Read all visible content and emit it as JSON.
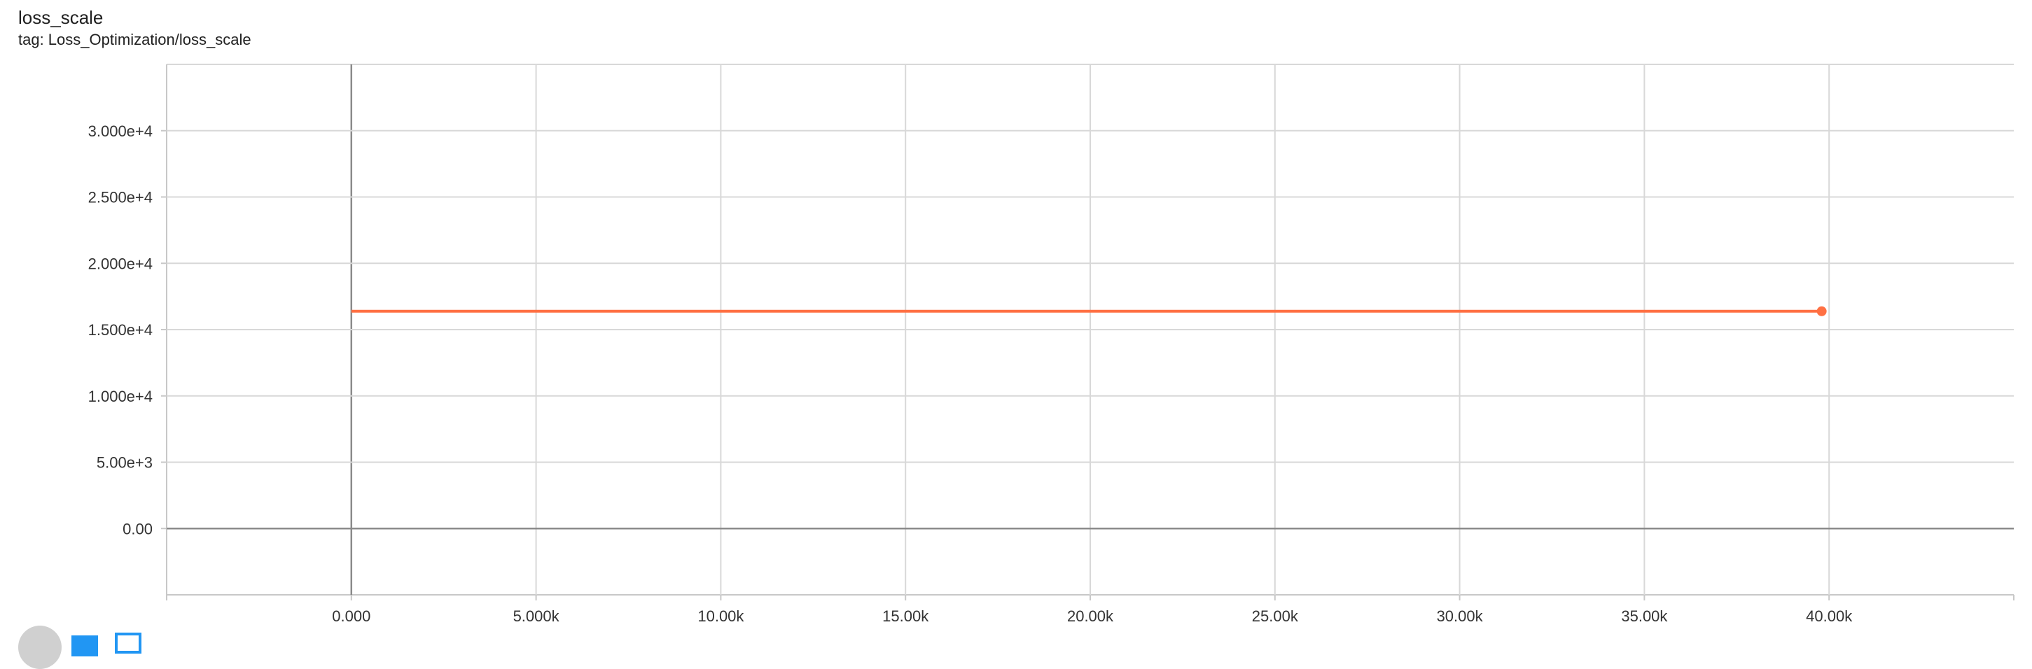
{
  "card": {
    "title": "loss_scale",
    "tag": "tag: Loss_Optimization/loss_scale"
  },
  "chart_data": {
    "type": "line",
    "title": "loss_scale",
    "xlabel": "",
    "ylabel": "",
    "xlim": [
      -5000,
      45000
    ],
    "ylim": [
      -5000,
      35000
    ],
    "x_ticks": [
      0,
      5000,
      10000,
      15000,
      20000,
      25000,
      30000,
      35000,
      40000
    ],
    "x_tick_labels": [
      "0.000",
      "5.000k",
      "10.00k",
      "15.00k",
      "20.00k",
      "25.00k",
      "30.00k",
      "35.00k",
      "40.00k"
    ],
    "y_ticks": [
      0,
      5000,
      10000,
      15000,
      20000,
      25000,
      30000
    ],
    "y_tick_labels": [
      "0.00",
      "5.00e+3",
      "1.000e+4",
      "1.500e+4",
      "2.000e+4",
      "2.500e+4",
      "3.000e+4"
    ],
    "grid": true,
    "series": [
      {
        "color": "#ff7043",
        "x": [
          0,
          39800
        ],
        "y": [
          16384,
          16384
        ]
      }
    ]
  },
  "footer": {
    "icons": [
      "expand-icon",
      "data-icon",
      "fit-domain-icon"
    ]
  }
}
